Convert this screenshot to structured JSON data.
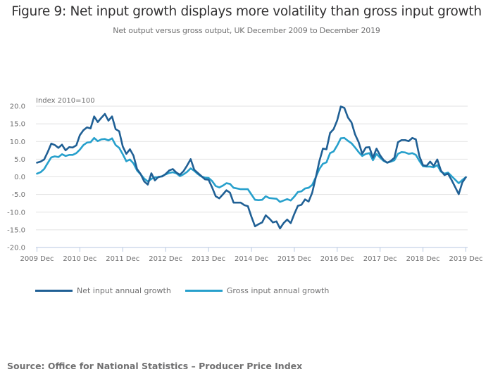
{
  "header": {
    "title": "Figure 9: Net input growth displays more volatility than gross input growth",
    "subtitle": "Net output versus gross output, UK December 2009 to December 2019"
  },
  "footer": {
    "source": "Source: Office for National Statistics – Producer Price Index"
  },
  "colors": {
    "net": "#206095",
    "gross": "#27a0cc",
    "grid": "#e2e2e3",
    "axis": "#b7c7e0"
  },
  "chart_data": {
    "type": "line",
    "title": "Figure 9: Net input growth displays more volatility than gross input growth",
    "subtitle": "Net output versus gross output, UK December 2009 to December 2019",
    "xlabel": "",
    "ylabel": "Index 2010=100",
    "ylim": [
      -20,
      20
    ],
    "yticks": [
      20,
      15,
      10,
      5,
      0,
      -5,
      -10,
      -15,
      -20
    ],
    "ytick_labels": [
      "20.0",
      "15.0",
      "10.0",
      "5.0",
      "0.0",
      "-5.0",
      "-10.0",
      "-15.0",
      "-20.0"
    ],
    "x_start": "2009 Dec",
    "x_end": "2019 Dec",
    "x_frequency": "monthly",
    "xtick_labels": [
      "2009 Dec",
      "2010 Dec",
      "2011 Dec",
      "2012 Dec",
      "2013 Dec",
      "2014 Dec",
      "2015 Dec",
      "2016 Dec",
      "2017 Dec",
      "2018 Dec",
      "2019 Dec"
    ],
    "xtick_month_index": [
      0,
      12,
      24,
      36,
      48,
      60,
      72,
      84,
      96,
      108,
      120
    ],
    "grid": true,
    "legend_position": "bottom-left",
    "series": [
      {
        "name": "Net input annual growth",
        "color": "#206095",
        "values": [
          4.0,
          4.3,
          4.9,
          7.0,
          9.4,
          9.0,
          8.2,
          9.1,
          7.5,
          8.4,
          8.3,
          8.9,
          11.8,
          13.2,
          14.0,
          13.7,
          17.1,
          15.5,
          16.7,
          17.8,
          15.9,
          17.1,
          13.5,
          12.9,
          8.6,
          6.5,
          7.8,
          6.0,
          2.2,
          0.8,
          -1.3,
          -2.2,
          1.0,
          -1.0,
          0.0,
          0.1,
          0.8,
          1.8,
          2.2,
          1.2,
          0.6,
          1.6,
          3.2,
          5.0,
          2.0,
          1.1,
          0.2,
          -0.7,
          -0.8,
          -3.0,
          -5.5,
          -6.1,
          -5.0,
          -3.8,
          -4.5,
          -7.3,
          -7.3,
          -7.3,
          -8.0,
          -8.3,
          -11.3,
          -14.0,
          -13.4,
          -12.9,
          -10.9,
          -11.8,
          -12.9,
          -12.6,
          -14.6,
          -13.1,
          -12.1,
          -13.1,
          -10.5,
          -8.2,
          -7.9,
          -6.4,
          -7.0,
          -4.5,
          -0.2,
          4.4,
          8.0,
          7.8,
          12.4,
          13.5,
          16.0,
          19.9,
          19.5,
          16.8,
          15.4,
          12.0,
          9.8,
          6.5,
          8.3,
          8.4,
          5.4,
          8.0,
          6.1,
          4.7,
          4.0,
          4.5,
          5.4,
          9.8,
          10.4,
          10.4,
          10.1,
          11.0,
          10.6,
          5.8,
          3.3,
          3.1,
          4.3,
          3.1,
          4.9,
          1.8,
          0.5,
          0.9,
          -0.9,
          -2.9,
          -4.9,
          -1.6,
          -0.1
        ]
      },
      {
        "name": "Gross input annual growth",
        "color": "#27a0cc",
        "values": [
          0.9,
          1.3,
          2.2,
          3.9,
          5.5,
          5.8,
          5.6,
          6.4,
          5.9,
          6.2,
          6.2,
          6.7,
          7.7,
          9.0,
          9.7,
          9.8,
          11.0,
          10.1,
          10.6,
          10.7,
          10.3,
          10.9,
          9.0,
          8.2,
          6.4,
          4.4,
          4.9,
          3.8,
          1.8,
          0.7,
          -0.5,
          -1.3,
          -0.6,
          -0.1,
          -0.1,
          0.2,
          0.7,
          1.1,
          1.3,
          1.0,
          0.2,
          0.7,
          1.4,
          2.4,
          1.7,
          0.8,
          0.1,
          -0.2,
          -0.3,
          -1.2,
          -2.6,
          -3.0,
          -2.5,
          -1.8,
          -2.0,
          -3.1,
          -3.3,
          -3.5,
          -3.5,
          -3.5,
          -5.0,
          -6.5,
          -6.6,
          -6.5,
          -5.5,
          -6.0,
          -6.1,
          -6.2,
          -7.1,
          -6.7,
          -6.3,
          -6.7,
          -5.6,
          -4.3,
          -4.1,
          -3.3,
          -3.1,
          -2.3,
          -0.1,
          2.2,
          3.7,
          4.1,
          6.7,
          7.2,
          8.9,
          10.9,
          11.0,
          10.2,
          9.5,
          8.3,
          7.0,
          5.9,
          6.5,
          6.7,
          4.7,
          6.5,
          5.4,
          4.5,
          4.0,
          4.3,
          4.7,
          6.5,
          7.0,
          6.9,
          6.5,
          6.7,
          6.2,
          4.5,
          3.0,
          2.9,
          2.9,
          2.7,
          3.3,
          1.5,
          0.9,
          1.2,
          0.2,
          -0.8,
          -1.8,
          -0.9,
          -0.1
        ]
      }
    ]
  }
}
